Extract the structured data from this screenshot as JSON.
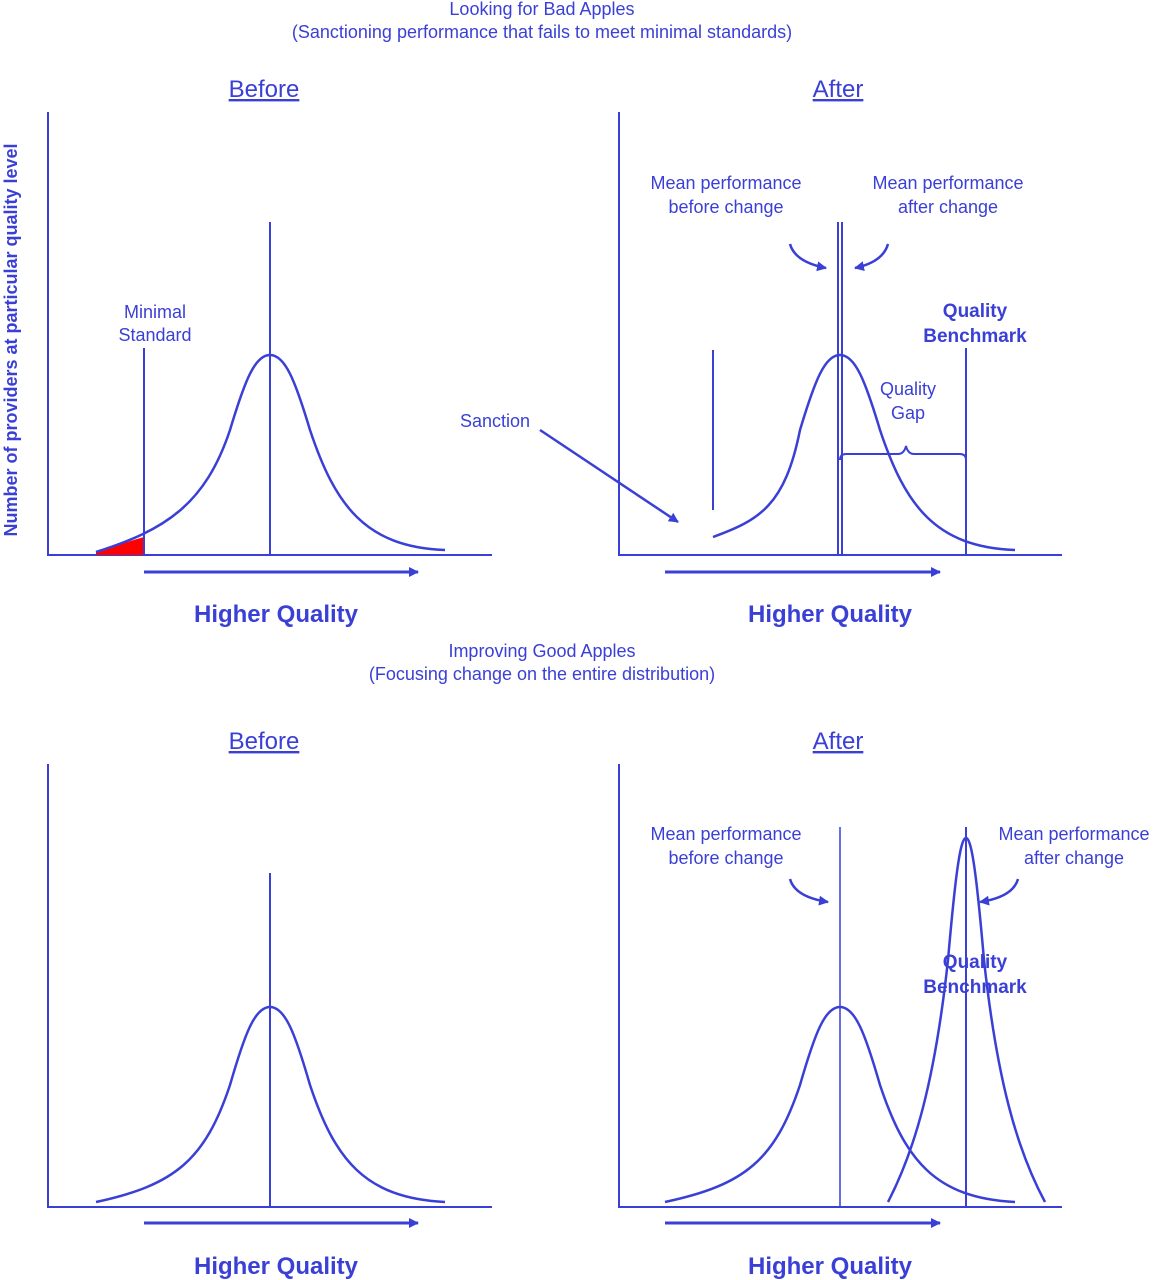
{
  "colors": {
    "ink": "#3a3fd6",
    "highlight": "#ff0000"
  },
  "top_section": {
    "title": "Looking for Bad Apples",
    "subtitle": "(Sanctioning performance that fails to meet minimal standards)",
    "before": {
      "heading": "Before",
      "y_axis_label": "Number of providers at particular quality level",
      "x_axis_label": "Higher Quality",
      "minimal_standard": [
        "Minimal",
        "Standard"
      ]
    },
    "after": {
      "heading": "After",
      "x_axis_label": "Higher Quality",
      "mean_before": [
        "Mean performance",
        "before change"
      ],
      "mean_after": [
        "Mean performance",
        "after change"
      ],
      "quality_benchmark": [
        "Quality",
        "Benchmark"
      ],
      "quality_gap": [
        "Quality",
        "Gap"
      ],
      "sanction": "Sanction"
    }
  },
  "bottom_section": {
    "title": "Improving Good Apples",
    "subtitle": "(Focusing change on the entire distribution)",
    "before": {
      "heading": "Before",
      "x_axis_label": "Higher Quality"
    },
    "after": {
      "heading": "After",
      "x_axis_label": "Higher Quality",
      "mean_before": [
        "Mean performance",
        "before change"
      ],
      "mean_after": [
        "Mean performance",
        "after change"
      ],
      "quality_benchmark": [
        "Quality",
        "Benchmark"
      ]
    }
  }
}
